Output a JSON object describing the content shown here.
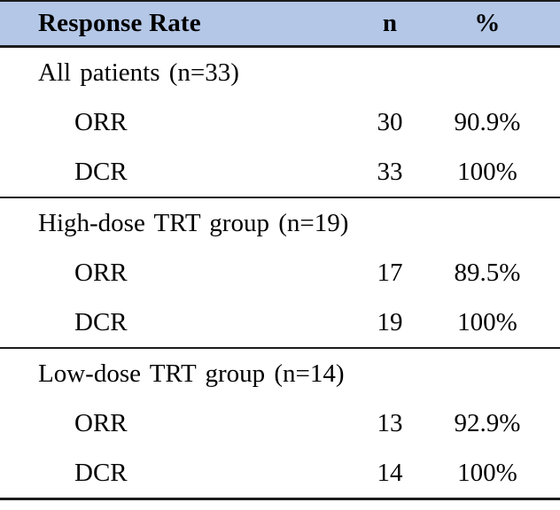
{
  "table": {
    "header": {
      "col1": "Response Rate",
      "col2": "n",
      "col3": "%"
    },
    "sections": [
      {
        "group": "All patients (n=33)",
        "rows": [
          {
            "label": "ORR",
            "n": "30",
            "pct": "90.9%"
          },
          {
            "label": "DCR",
            "n": "33",
            "pct": "100%"
          }
        ]
      },
      {
        "group": "High-dose TRT group (n=19)",
        "rows": [
          {
            "label": "ORR",
            "n": "17",
            "pct": "89.5%"
          },
          {
            "label": "DCR",
            "n": "19",
            "pct": "100%"
          }
        ]
      },
      {
        "group": "Low-dose TRT group (n=14)",
        "rows": [
          {
            "label": "ORR",
            "n": "13",
            "pct": "92.9%"
          },
          {
            "label": "DCR",
            "n": "14",
            "pct": "100%"
          }
        ]
      }
    ],
    "colors": {
      "header_bg": "#b4c7e7",
      "border": "#1c1c1c",
      "text": "#000000"
    }
  }
}
